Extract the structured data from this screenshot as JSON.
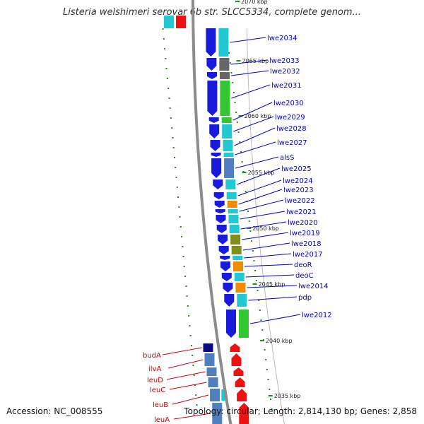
{
  "header": {
    "title": "Listeria welshimeri serovar 6b str. SLCC5334, complete genom..."
  },
  "footer": {
    "accession": "Accession: NC_008555",
    "topology": "Topology: circular; Length: 2,814,130 bp; Genes: 2,858"
  },
  "colors": {
    "backbone": "#8c8c8c",
    "forward_gene": "#1a1adb",
    "reverse_gene": "#ee1111",
    "cog_cyan": "#22c8d2",
    "cog_gray": "#666666",
    "cog_green": "#33c633",
    "cog_orange": "#f08c00",
    "cog_olive": "#7f8f1a",
    "cog_steelblue": "#4f7fbf",
    "cog_navy": "#0a0a80",
    "gc_skew": "#1f8a1f",
    "forward_label": "#0000cc",
    "reverse_label": "#cc0000"
  },
  "ticks": [
    {
      "label": "2070 kbp"
    },
    {
      "label": "2065 kbp"
    },
    {
      "label": "2060 kbp"
    },
    {
      "label": "2055 kbp"
    },
    {
      "label": "2050 kbp"
    },
    {
      "label": "2045 kbp"
    },
    {
      "label": "2040 kbp"
    },
    {
      "label": "2035 kbp"
    }
  ],
  "forward_genes": [
    {
      "label": "lwe2034",
      "cog": "cyan"
    },
    {
      "label": "lwe2033",
      "cog": "gray"
    },
    {
      "label": "lwe2032",
      "cog": "gray"
    },
    {
      "label": "lwe2031",
      "cog": "green"
    },
    {
      "label": "lwe2030",
      "cog": "green"
    },
    {
      "label": "lwe2029",
      "cog": "cyan"
    },
    {
      "label": "lwe2028",
      "cog": "cyan"
    },
    {
      "label": "lwe2027",
      "cog": "cyan"
    },
    {
      "label": "alsS",
      "cog": "steelblue"
    },
    {
      "label": "lwe2025",
      "cog": "cyan"
    },
    {
      "label": "lwe2024",
      "cog": "cyan"
    },
    {
      "label": "lwe2023",
      "cog": "orange"
    },
    {
      "label": "lwe2022",
      "cog": "cyan"
    },
    {
      "label": "lwe2021",
      "cog": "cyan"
    },
    {
      "label": "lwe2020",
      "cog": "cyan"
    },
    {
      "label": "lwe2019",
      "cog": "olive"
    },
    {
      "label": "lwe2018",
      "cog": "olive"
    },
    {
      "label": "lwe2017",
      "cog": "cyan"
    },
    {
      "label": "deoR",
      "cog": "orange"
    },
    {
      "label": "deoC",
      "cog": "cyan"
    },
    {
      "label": "lwe2014",
      "cog": "orange"
    },
    {
      "label": "pdp",
      "cog": "cyan"
    },
    {
      "label": "lwe2012",
      "cog": "green"
    }
  ],
  "reverse_genes": [
    {
      "label": "budA",
      "cog": "navy"
    },
    {
      "label": "ilvA",
      "cog": "steelblue"
    },
    {
      "label": "leuD",
      "cog": "steelblue"
    },
    {
      "label": "leuC",
      "cog": "steelblue"
    },
    {
      "label": "leuB",
      "cog": "steelblue"
    },
    {
      "label": "leuA",
      "cog": "steelblue"
    }
  ]
}
